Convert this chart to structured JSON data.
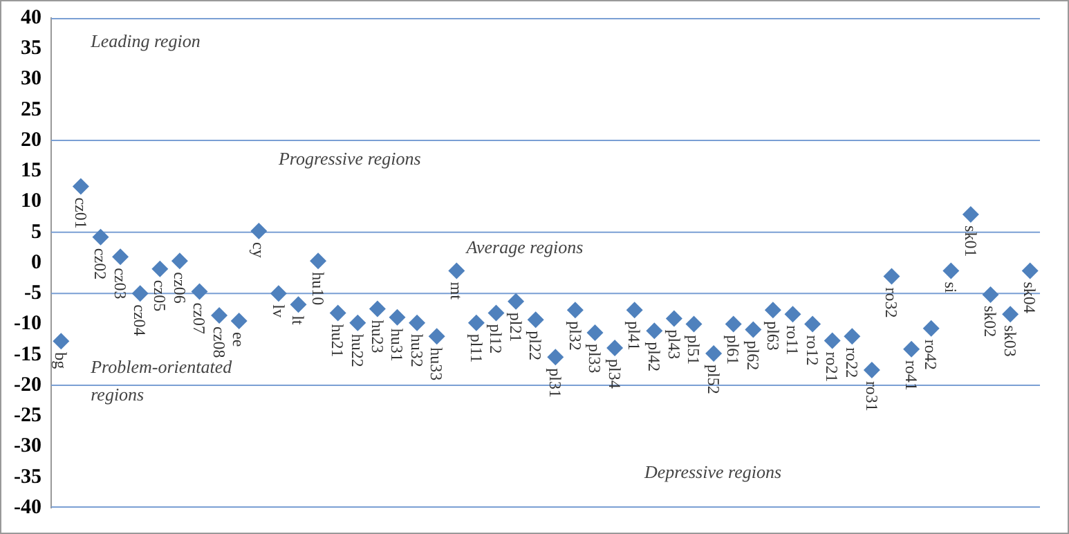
{
  "chart_data": {
    "type": "scatter",
    "marker": "diamond",
    "legend": false,
    "grid": false,
    "categories": [
      "bg",
      "cz01",
      "cz02",
      "cz03",
      "cz04",
      "cz05",
      "cz06",
      "cz07",
      "cz08",
      "ee",
      "cy",
      "lv",
      "lt",
      "hu10",
      "hu21",
      "hu22",
      "hu23",
      "hu31",
      "hu32",
      "hu33",
      "mt",
      "pl11",
      "pl12",
      "pl21",
      "pl22",
      "pl31",
      "pl32",
      "pl33",
      "pl34",
      "pl41",
      "pl42",
      "pl43",
      "pl51",
      "pl52",
      "pl61",
      "pl62",
      "pl63",
      "ro11",
      "ro12",
      "ro21",
      "ro22",
      "ro31",
      "ro32",
      "ro41",
      "ro42",
      "si",
      "sk01",
      "sk02",
      "sk03",
      "sk04"
    ],
    "series": [
      {
        "color": "#4f81bd",
        "values": [
          -12.8,
          12.5,
          4.2,
          1,
          -5,
          -1,
          0.3,
          -4.7,
          -8.6,
          -9.5,
          5.2,
          -5,
          -6.8,
          0.3,
          -8.2,
          -9.8,
          -7.5,
          -8.9,
          -9.8,
          -12,
          -1.3,
          -9.8,
          -8.2,
          -6.3,
          -9.3,
          -15.4,
          -7.7,
          -11.4,
          -13.9,
          -7.7,
          -11.1,
          -9.1,
          -10,
          -14.8,
          -10,
          -10.9,
          -7.7,
          -8.4,
          -10,
          -12.7,
          -12,
          -17.5,
          -2.2,
          -14.1,
          -10.7,
          -1.3,
          7.9,
          -5.2,
          -8.4,
          -1.3
        ]
      }
    ],
    "ylim": [
      -40,
      40
    ],
    "yticks": [
      -40,
      -35,
      -30,
      -25,
      -20,
      -15,
      -10,
      -5,
      0,
      5,
      10,
      15,
      20,
      25,
      30,
      35,
      40
    ],
    "ref_lines": [
      {
        "axis": "y",
        "value": 20,
        "color": "#7a9fd4"
      },
      {
        "axis": "y",
        "value": 5,
        "color": "#7a9fd4"
      },
      {
        "axis": "y",
        "value": -5,
        "color": "#7a9fd4"
      },
      {
        "axis": "y",
        "value": -20,
        "color": "#7a9fd4"
      }
    ],
    "annotations": [
      "Leading region",
      "Progressive regions",
      "Average regions",
      "Problem-orientated\nregions",
      "Depressive regions"
    ]
  }
}
